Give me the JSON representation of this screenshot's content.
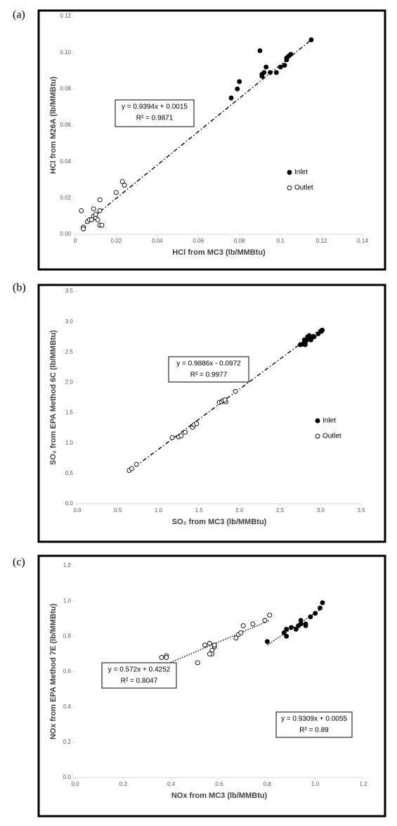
{
  "chart_data": [
    {
      "type": "scatter",
      "panel_label": "(a)",
      "x_label": "HCl from MC3 (lb/MMBtu)",
      "y_label": "HCl from M26A (lb/MMBtu)",
      "xlim": [
        0,
        0.14
      ],
      "ylim": [
        0,
        0.12
      ],
      "xticks": [
        0,
        0.02,
        0.04,
        0.06,
        0.08,
        {
          "value": 0.1,
          "label": "0.1"
        },
        0.12,
        0.14
      ],
      "yticks": [
        {
          "value": 0,
          "label": "0.00"
        },
        0.02,
        0.04,
        0.06,
        0.08,
        {
          "value": 0.1,
          "label": "0.10"
        },
        0.12
      ],
      "legend": "lower right",
      "series": [
        {
          "name": "Inlet",
          "color": "#000000",
          "marker": "filled",
          "x": [
            0.09,
            0.115,
            0.104,
            0.105,
            0.103,
            0.102,
            0.1,
            0.098,
            0.095,
            0.093,
            0.092,
            0.091,
            0.091,
            0.08,
            0.079,
            0.076,
            0.103
          ],
          "values": [
            0.101,
            0.107,
            0.098,
            0.099,
            0.096,
            0.093,
            0.092,
            0.089,
            0.089,
            0.092,
            0.089,
            0.088,
            0.087,
            0.084,
            0.08,
            0.075,
            0.097
          ]
        },
        {
          "name": "Outlet",
          "color": "#000000",
          "marker": "open",
          "x": [
            0.003,
            0.004,
            0.004,
            0.006,
            0.007,
            0.009,
            0.009,
            0.01,
            0.01,
            0.011,
            0.012,
            0.012,
            0.012,
            0.013,
            0.02,
            0.023,
            0.024,
            0.008
          ],
          "values": [
            0.013,
            0.004,
            0.003,
            0.007,
            0.008,
            0.014,
            0.01,
            0.009,
            0.011,
            0.008,
            0.013,
            0.019,
            0.005,
            0.005,
            0.023,
            0.029,
            0.027,
            0.008
          ]
        }
      ],
      "trendlines": [
        {
          "style": "dashdot",
          "x": [
            0.005,
            0.115
          ],
          "y": [
            0.006,
            0.107
          ]
        }
      ],
      "annotations": [
        [
          "y = 0.9394x + 0.0015",
          "R² = 0.9871"
        ]
      ]
    },
    {
      "type": "scatter",
      "panel_label": "(b)",
      "x_label": "SO₂ from MC3 (lb/MMBtu)",
      "y_label": "SO₂ from EPA Method 6C (lb/MMBtu)",
      "xlim": [
        0,
        3.5
      ],
      "ylim": [
        0,
        3.5
      ],
      "xticks": [
        {
          "value": 0,
          "label": "0.0"
        },
        0.5,
        {
          "value": 1,
          "label": "1.0"
        },
        1.5,
        {
          "value": 2,
          "label": "2.0"
        },
        2.5,
        {
          "value": 3,
          "label": "3.0"
        },
        3.5
      ],
      "yticks": [
        {
          "value": 0,
          "label": "0.0"
        },
        0.5,
        {
          "value": 1,
          "label": "1.0"
        },
        1.5,
        {
          "value": 2,
          "label": "2.0"
        },
        2.5,
        {
          "value": 3,
          "label": "3.0"
        },
        3.5
      ],
      "legend": "lower right",
      "series": [
        {
          "name": "Inlet",
          "color": "#000000",
          "marker": "filled",
          "x": [
            2.75,
            2.78,
            2.8,
            2.82,
            2.83,
            2.85,
            2.84,
            2.86,
            2.88,
            2.92,
            2.97,
            3.01,
            3.02,
            2.8,
            2.81,
            2.87
          ],
          "values": [
            2.62,
            2.63,
            2.65,
            2.68,
            2.7,
            2.72,
            2.75,
            2.77,
            2.7,
            2.75,
            2.8,
            2.84,
            2.86,
            2.7,
            2.62,
            2.73
          ]
        },
        {
          "name": "Outlet",
          "color": "#000000",
          "marker": "open",
          "x": [
            0.64,
            0.67,
            0.73,
            1.17,
            1.25,
            1.28,
            1.33,
            1.42,
            1.44,
            1.47,
            1.75,
            1.78,
            1.8,
            1.83,
            1.95,
            1.82
          ],
          "values": [
            0.55,
            0.58,
            0.65,
            1.09,
            1.1,
            1.12,
            1.18,
            1.26,
            1.3,
            1.32,
            1.67,
            1.68,
            1.7,
            1.68,
            1.85,
            1.71
          ]
        }
      ],
      "trendlines": [
        {
          "style": "dashdot",
          "x": [
            0.62,
            3.0
          ],
          "y": [
            0.52,
            2.88
          ]
        }
      ],
      "annotations": [
        [
          "y = 0.9886x - 0.0972",
          "R² = 0.9977"
        ]
      ]
    },
    {
      "type": "scatter",
      "panel_label": "(c)",
      "x_label": "NOx from MC3 (lb/MMBtu)",
      "y_label": "NOx from EPA Method 7E (lb/MMBtu)",
      "xlim": [
        0,
        1.2
      ],
      "ylim": [
        0,
        1.2
      ],
      "xticks": [
        {
          "value": 0,
          "label": "0.0"
        },
        0.2,
        0.4,
        0.6,
        0.8,
        {
          "value": 1,
          "label": "1.0"
        },
        1.2
      ],
      "yticks": [
        {
          "value": 0,
          "label": "0.0"
        },
        0.2,
        0.4,
        0.6,
        0.8,
        {
          "value": 1,
          "label": "1.0"
        },
        1.2
      ],
      "legend": "lower right",
      "series": [
        {
          "name": "Inlet",
          "color": "#000000",
          "marker": "filled",
          "x": [
            0.8,
            0.87,
            0.88,
            0.88,
            0.9,
            0.92,
            0.93,
            0.94,
            0.94,
            0.96,
            0.98,
            1.0,
            1.02,
            1.03,
            0.96
          ],
          "values": [
            0.77,
            0.82,
            0.8,
            0.84,
            0.85,
            0.84,
            0.86,
            0.87,
            0.89,
            0.87,
            0.91,
            0.93,
            0.96,
            0.99,
            0.86
          ]
        },
        {
          "name": "Outlet",
          "color": "#000000",
          "marker": "open",
          "x": [
            0.36,
            0.38,
            0.38,
            0.51,
            0.54,
            0.56,
            0.57,
            0.57,
            0.56,
            0.58,
            0.58,
            0.67,
            0.68,
            0.7,
            0.74,
            0.79,
            0.81,
            0.69
          ],
          "values": [
            0.68,
            0.69,
            0.68,
            0.65,
            0.75,
            0.76,
            0.72,
            0.7,
            0.7,
            0.74,
            0.75,
            0.79,
            0.81,
            0.86,
            0.87,
            0.89,
            0.92,
            0.82
          ]
        }
      ],
      "trendlines": [
        {
          "style": "dotted",
          "x": [
            0.36,
            0.81
          ],
          "y": [
            0.63,
            0.89
          ]
        },
        {
          "style": "dotted",
          "x": [
            0.8,
            1.03
          ],
          "y": [
            0.75,
            0.96
          ]
        }
      ],
      "annotations": [
        [
          "y = 0.572x + 0.4252",
          "R² = 0.8047"
        ],
        [
          "y = 0.9309x + 0.0055",
          "R² = 0.89"
        ]
      ]
    }
  ]
}
